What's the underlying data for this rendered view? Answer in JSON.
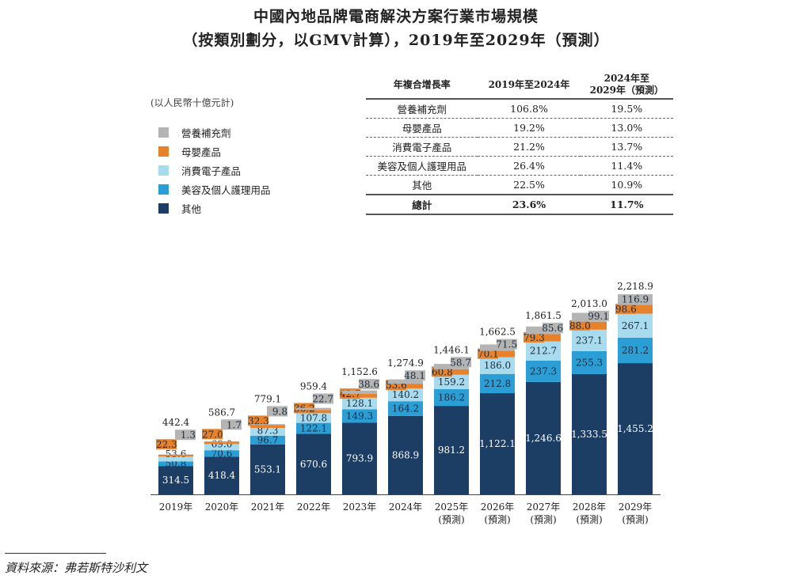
{
  "title_line1": "中國內地品牌電商解決方案行業市場規模",
  "title_line2": "（按類別劃分，以GMV計算），2019年至2029年（預測）",
  "unit": "(以人民幣十億元計)",
  "colors": {
    "營養補充劑": "#b4b4b4",
    "母嬰產品": "#e8822a",
    "消費電子產品": "#a9dbee",
    "美容及個人護理用品": "#2b9ed6",
    "其他": "#1c3d64"
  },
  "cagr_table": {
    "headers": [
      "年複合增長率",
      "2019年至2024年",
      "2024年至\n2029年（預測）"
    ],
    "rows": [
      [
        "營養補充劑",
        "106.8%",
        "19.5%"
      ],
      [
        "母嬰產品",
        "19.2%",
        "13.0%"
      ],
      [
        "消費電子產品",
        "21.2%",
        "13.7%"
      ],
      [
        "美容及個人護理用品",
        "26.4%",
        "11.4%"
      ],
      [
        "其他",
        "22.5%",
        "10.9%"
      ]
    ],
    "total": [
      "總計",
      "23.6%",
      "11.7%"
    ]
  },
  "chart_data": {
    "type": "bar",
    "stacked": true,
    "legend_position": "top-left",
    "categories": [
      "2019年",
      "2020年",
      "2021年",
      "2022年",
      "2023年",
      "2024年",
      "2025年\n(預測)",
      "2026年\n(預測)",
      "2027年\n(預測)",
      "2028年\n(預測)",
      "2029年\n(預測)"
    ],
    "series": [
      {
        "name": "其他",
        "values": [
          314.5,
          418.4,
          553.1,
          670.6,
          793.9,
          868.9,
          981.2,
          1122.1,
          1246.6,
          1333.5,
          1455.2
        ]
      },
      {
        "name": "美容及個人護理用品",
        "values": [
          50.8,
          70.6,
          96.7,
          122.1,
          149.3,
          164.2,
          186.2,
          212.8,
          237.3,
          255.3,
          281.2
        ]
      },
      {
        "name": "消費電子產品",
        "values": [
          53.6,
          69.0,
          87.3,
          107.8,
          128.1,
          140.2,
          159.2,
          186.0,
          212.7,
          237.1,
          267.1
        ]
      },
      {
        "name": "母嬰產品",
        "values": [
          22.3,
          27.0,
          32.3,
          36.2,
          42.7,
          53.6,
          60.8,
          70.1,
          79.3,
          88.0,
          98.6
        ]
      },
      {
        "name": "營養補充劑",
        "values": [
          1.3,
          1.7,
          9.8,
          22.7,
          38.6,
          48.1,
          58.7,
          71.5,
          85.6,
          99.1,
          116.9
        ]
      }
    ],
    "totals": [
      "442.4",
      "586.7",
      "779.1",
      "959.4",
      "1,152.6",
      "1,274.9",
      "1,446.1",
      "1,662.5",
      "1,861.5",
      "2,013.0",
      "2,218.9"
    ],
    "ylim": [
      0,
      2300
    ]
  },
  "source": "資料來源：弗若斯特沙利文"
}
